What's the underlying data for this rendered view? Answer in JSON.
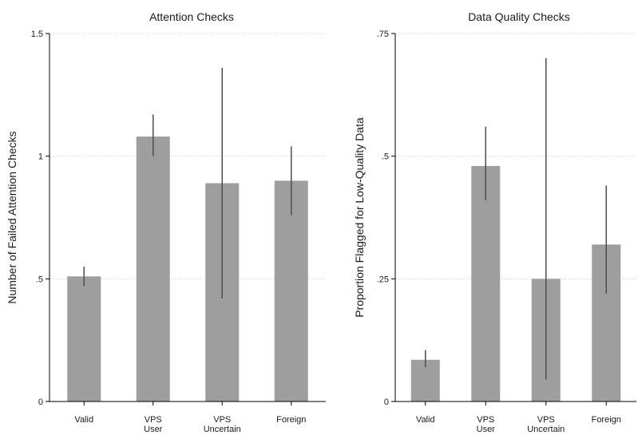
{
  "colors": {
    "bar": "#9e9e9e",
    "errorbar": "#4d4d4d",
    "axis": "#000000",
    "grid": "#dcdcdc"
  },
  "chart_data": [
    {
      "type": "bar",
      "title": "Attention Checks",
      "xlabel": "",
      "ylabel": "Number of Failed Attention Checks",
      "categories": [
        [
          "Valid"
        ],
        [
          "VPS",
          "User"
        ],
        [
          "VPS",
          "Uncertain"
        ],
        [
          "Foreign"
        ]
      ],
      "values": [
        0.51,
        1.08,
        0.89,
        0.9
      ],
      "error_low": [
        0.47,
        1.0,
        0.42,
        0.76
      ],
      "error_high": [
        0.55,
        1.17,
        1.36,
        1.04
      ],
      "ylim": [
        0,
        1.5
      ],
      "yticks": [
        0,
        0.5,
        1,
        1.5
      ],
      "ytick_labels": [
        "0",
        ".5",
        "1",
        "1.5"
      ],
      "grid": true,
      "legend": false
    },
    {
      "type": "bar",
      "title": "Data Quality Checks",
      "xlabel": "",
      "ylabel": "Proportion Flagged for Low-Quality Data",
      "categories": [
        [
          "Valid"
        ],
        [
          "VPS",
          "User"
        ],
        [
          "VPS",
          "Uncertain"
        ],
        [
          "Foreign"
        ]
      ],
      "values": [
        0.085,
        0.48,
        0.25,
        0.32
      ],
      "error_low": [
        0.07,
        0.41,
        0.045,
        0.22
      ],
      "error_high": [
        0.105,
        0.56,
        0.7,
        0.44
      ],
      "ylim": [
        0,
        0.75
      ],
      "yticks": [
        0,
        0.25,
        0.5,
        0.75
      ],
      "ytick_labels": [
        "0",
        ".25",
        ".5",
        ".75"
      ],
      "grid": true,
      "legend": false
    }
  ]
}
